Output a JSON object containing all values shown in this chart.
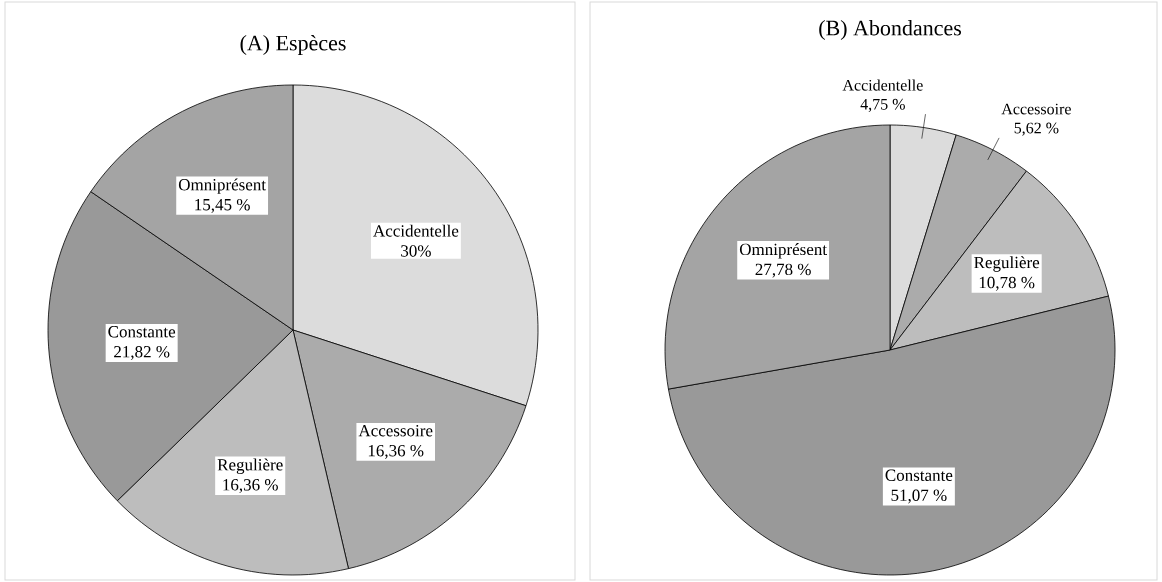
{
  "chart_data": [
    {
      "type": "pie",
      "title": "(A) Espèces",
      "categories": [
        "Accidentelle",
        "Accessoire",
        "Regulière",
        "Constante",
        "Omniprésent"
      ],
      "values": [
        30,
        16.36,
        16.36,
        21.82,
        15.45
      ],
      "value_labels": [
        "30%",
        "16,36 %",
        "16,36 %",
        "21,82 %",
        "15,45 %"
      ],
      "colors": [
        "#dcdcdc",
        "#ababab",
        "#bdbdbd",
        "#999999",
        "#a4a4a4"
      ]
    },
    {
      "type": "pie",
      "title": "(B) Abondances",
      "categories": [
        "Accidentelle",
        "Accessoire",
        "Regulière",
        "Constante",
        "Omniprésent"
      ],
      "values": [
        4.75,
        5.62,
        10.78,
        51.07,
        27.78
      ],
      "value_labels": [
        "4,75 %",
        "5,62 %",
        "10,78 %",
        "51,07 %",
        "27,78 %"
      ],
      "colors": [
        "#dcdcdc",
        "#ababab",
        "#bdbdbd",
        "#999999",
        "#a4a4a4"
      ]
    }
  ]
}
